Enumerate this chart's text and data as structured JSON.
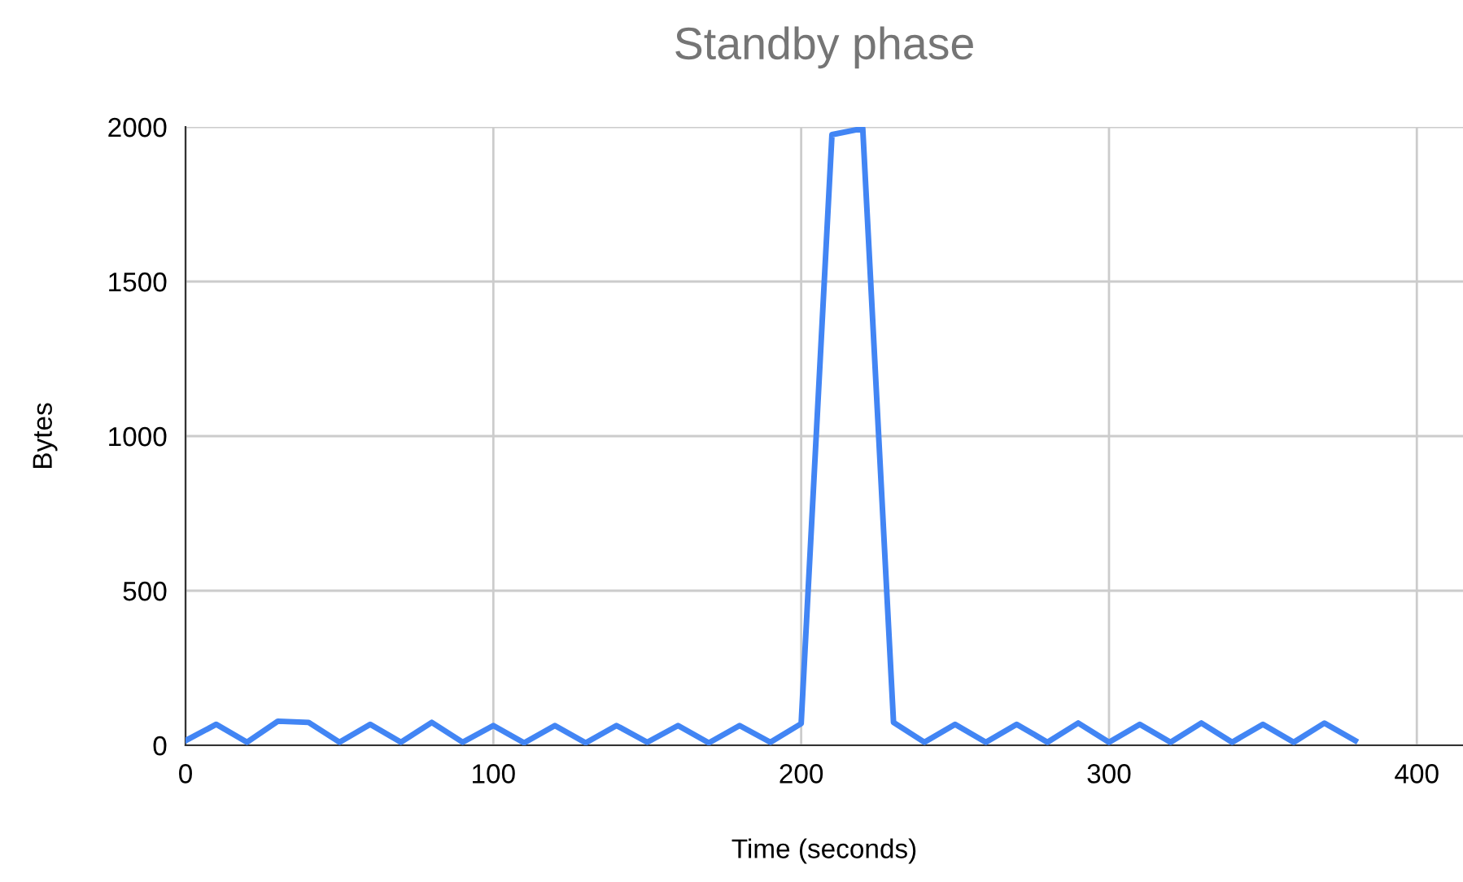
{
  "chart_data": {
    "type": "line",
    "title": "Standby phase",
    "xlabel": "Time (seconds)",
    "ylabel": "Bytes",
    "x": [
      0,
      10,
      20,
      30,
      40,
      50,
      60,
      70,
      80,
      90,
      100,
      110,
      120,
      130,
      140,
      150,
      160,
      170,
      180,
      190,
      200,
      210,
      220,
      230,
      240,
      250,
      260,
      270,
      280,
      290,
      300,
      310,
      320,
      330,
      340,
      350,
      360,
      370,
      380
    ],
    "series": [
      {
        "color": "#4285f4",
        "values": [
          15,
          68,
          10,
          78,
          74,
          10,
          68,
          10,
          74,
          10,
          64,
          8,
          64,
          8,
          64,
          10,
          64,
          8,
          64,
          10,
          70,
          1975,
          1995,
          74,
          10,
          68,
          10,
          68,
          10,
          72,
          10,
          68,
          10,
          72,
          10,
          68,
          10,
          72,
          15
        ]
      }
    ],
    "xlim": [
      0,
      415
    ],
    "xticks": [
      0,
      100,
      200,
      300,
      400
    ],
    "ylim": [
      0,
      2000
    ],
    "yticks": [
      0,
      500,
      1000,
      1500,
      2000
    ],
    "grid": true,
    "legend": false,
    "marker": "none",
    "line_style": "solid"
  }
}
